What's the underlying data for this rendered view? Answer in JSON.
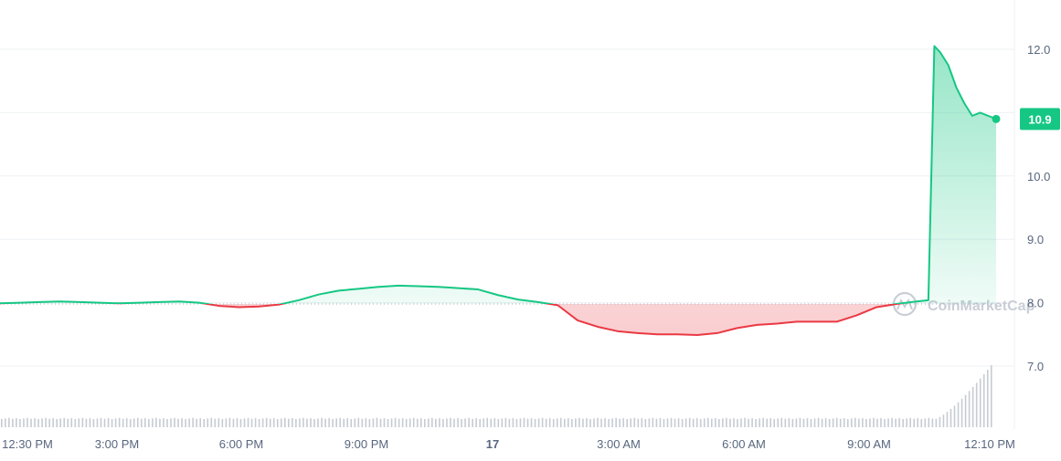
{
  "chart_data": {
    "type": "line",
    "title": "",
    "xlabel": "",
    "ylabel": "",
    "x_tick_labels": [
      "12:30 PM",
      "3:00 PM",
      "6:00 PM",
      "9:00 PM",
      "17",
      "3:00 AM",
      "6:00 AM",
      "9:00 AM",
      "12:10 PM"
    ],
    "y_tick_labels": [
      "7.0",
      "8.0",
      "9.0",
      "10.0",
      "12.0"
    ],
    "ylim": [
      6.0,
      12.8
    ],
    "baseline": 7.98,
    "last_price_label": "10.9",
    "last_price": 10.9,
    "watermark": "CoinMarketCap",
    "colors": {
      "up": "#16c784",
      "down": "#ea3943",
      "badge": "#16c784",
      "volume": "#c6cbd3"
    },
    "series": [
      {
        "x_hours": [
          0,
          0.5,
          1,
          1.5,
          2,
          2.5,
          3,
          3.5,
          4,
          4.5,
          5,
          5.5,
          6,
          6.5,
          7,
          7.5,
          8,
          8.5,
          9,
          9.5,
          10,
          10.5,
          11,
          11.5,
          12,
          12.5,
          13,
          13.5,
          14,
          14.5,
          15,
          15.5,
          16,
          16.5,
          17,
          17.5,
          18,
          18.5,
          19,
          19.5,
          20,
          20.5,
          21,
          21.5,
          22,
          22.5,
          23,
          23.3,
          23.45,
          23.6,
          23.8,
          24,
          24.2,
          24.4,
          24.6,
          24.8,
          25
        ],
        "values": [
          7.99,
          8.0,
          8.01,
          8.02,
          8.01,
          8.0,
          7.99,
          8.0,
          8.01,
          8.02,
          8.0,
          7.95,
          7.93,
          7.94,
          7.97,
          8.04,
          8.13,
          8.19,
          8.22,
          8.25,
          8.27,
          8.26,
          8.25,
          8.23,
          8.21,
          8.12,
          8.05,
          8.01,
          7.96,
          7.72,
          7.62,
          7.55,
          7.52,
          7.5,
          7.5,
          7.49,
          7.52,
          7.6,
          7.65,
          7.67,
          7.7,
          7.7,
          7.7,
          7.8,
          7.93,
          7.98,
          8.02,
          8.04,
          12.05,
          11.95,
          11.75,
          11.4,
          11.15,
          10.95,
          11.0,
          10.95,
          10.9
        ]
      }
    ]
  }
}
